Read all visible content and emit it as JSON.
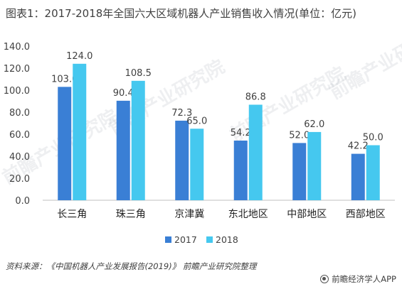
{
  "title": "图表1：2017-2018年全国六大区域机器人产业销售收入情况(单位：亿元)",
  "source": "资料来源：《中国机器人产业发展报告(2019)》 前瞻产业研究院整理",
  "brand": "前瞻经济学人APP",
  "watermark": "前瞻产业研究院",
  "colors": {
    "2017": "#3a7fd5",
    "2018": "#45c8ef"
  },
  "chart_data": {
    "type": "bar",
    "title": "图表1：2017-2018年全国六大区域机器人产业销售收入情况(单位：亿元)",
    "categories": [
      "长三角",
      "珠三角",
      "京津冀",
      "东北地区",
      "中部地区",
      "西部地区"
    ],
    "series": [
      {
        "name": "2017",
        "values": [
          103.0,
          90.4,
          72.3,
          54.2,
          52.0,
          42.2
        ]
      },
      {
        "name": "2018",
        "values": [
          124.0,
          108.5,
          65.0,
          86.8,
          62.0,
          50.0
        ]
      }
    ],
    "ylim": [
      0,
      140
    ],
    "yticks": [
      "0.0",
      "20.0",
      "40.0",
      "60.0",
      "80.0",
      "100.0",
      "120.0",
      "140.0"
    ],
    "grid": false,
    "legend": "bottom-center"
  }
}
